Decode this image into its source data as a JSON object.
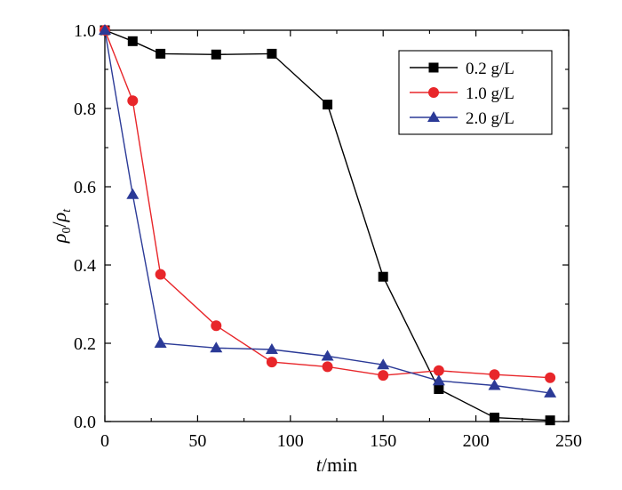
{
  "chart_data": {
    "type": "line",
    "title": "",
    "xlabel": {
      "italic": "t",
      "rest": "/min"
    },
    "ylabel": {
      "num_symbol": "ρ",
      "num_sub": "0",
      "slash": "/",
      "den_symbol": "ρ",
      "den_sub": "t"
    },
    "xlim": [
      0,
      250
    ],
    "ylim": [
      0,
      1.0
    ],
    "x_ticks": [
      0,
      50,
      100,
      150,
      200,
      250
    ],
    "y_ticks": [
      0.0,
      0.2,
      0.4,
      0.6,
      0.8,
      1.0
    ],
    "x_tick_labels": [
      "0",
      "50",
      "100",
      "150",
      "200",
      "250"
    ],
    "y_tick_labels": [
      "0.0",
      "0.2",
      "0.4",
      "0.6",
      "0.8",
      "1.0"
    ],
    "grid": false,
    "legend_position": "top-right",
    "series": [
      {
        "name": "0.2 g/L",
        "color": "#000000",
        "marker": "square",
        "x": [
          0,
          15,
          30,
          60,
          90,
          120,
          150,
          180,
          210,
          240
        ],
        "y": [
          1.0,
          0.972,
          0.94,
          0.938,
          0.94,
          0.81,
          0.37,
          0.083,
          0.01,
          0.003
        ]
      },
      {
        "name": "1.0 g/L",
        "color": "#e8262a",
        "marker": "circle",
        "x": [
          0,
          15,
          30,
          60,
          90,
          120,
          150,
          180,
          210,
          240
        ],
        "y": [
          1.0,
          0.82,
          0.376,
          0.245,
          0.152,
          0.14,
          0.118,
          0.13,
          0.12,
          0.112
        ]
      },
      {
        "name": "2.0 g/L",
        "color": "#2b3a97",
        "marker": "triangle",
        "x": [
          0,
          15,
          30,
          60,
          90,
          120,
          150,
          180,
          210,
          240
        ],
        "y": [
          1.0,
          0.58,
          0.2,
          0.188,
          0.184,
          0.167,
          0.145,
          0.104,
          0.092,
          0.073
        ]
      }
    ]
  }
}
